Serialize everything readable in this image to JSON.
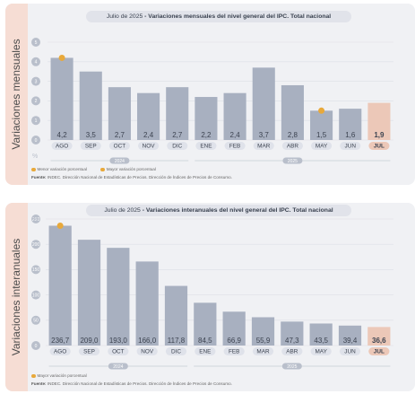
{
  "charts": [
    {
      "side_label": "Variaciones mensuales",
      "title_date": "Julio de 2025",
      "title_text": " - Variaciones mensuales del nivel general del IPC. Total nacional",
      "y_unit": "%",
      "legend_min": "Menor variación porcentual",
      "legend_max": "Mayor variación porcentual",
      "source_label": "Fuente:",
      "source_text": " INDEC. Dirección Nacional de Estadísticas de Precios. Dirección de Índices de Precios de Consumo."
    },
    {
      "side_label": "Variaciones interanuales",
      "title_date": "Julio de 2025",
      "title_text": " - Variaciones interanuales del nivel general del IPC. Total nacional",
      "y_unit": "%",
      "legend_max": "Mayor variación porcentual",
      "source_label": "Fuente:",
      "source_text": " INDEC. Dirección Nacional de Estadísticas de Precios. Dirección de Índices de Precios de Consumo."
    }
  ],
  "colors": {
    "bar": "#a8b0c0",
    "highlight_bar": "#ecc8b8",
    "marker": "#e8a93b",
    "pill": "#dfe2ea",
    "text": "#3c4350"
  },
  "chart_data": [
    {
      "type": "bar",
      "categories": [
        "AGO",
        "SEP",
        "OCT",
        "NOV",
        "DIC",
        "ENE",
        "FEB",
        "MAR",
        "ABR",
        "MAY",
        "JUN",
        "JUL"
      ],
      "values": [
        4.2,
        3.5,
        2.7,
        2.4,
        2.7,
        2.2,
        2.4,
        3.7,
        2.8,
        1.5,
        1.6,
        1.9
      ],
      "value_labels": [
        "4,2",
        "3,5",
        "2,7",
        "2,4",
        "2,7",
        "2,2",
        "2,4",
        "3,7",
        "2,8",
        "1,5",
        "1,6",
        "1,9"
      ],
      "ylim": [
        0,
        5
      ],
      "yticks": [
        0,
        1,
        2,
        3,
        4,
        5
      ],
      "ylabel": "%",
      "year_groups": [
        {
          "label": "2024",
          "from": 0,
          "to": 4
        },
        {
          "label": "2025",
          "from": 5,
          "to": 11
        }
      ],
      "highlight_index": 11,
      "max_index": 0,
      "min_index": 9
    },
    {
      "type": "bar",
      "categories": [
        "AGO",
        "SEP",
        "OCT",
        "NOV",
        "DIC",
        "ENE",
        "FEB",
        "MAR",
        "ABR",
        "MAY",
        "JUN",
        "JUL"
      ],
      "values": [
        236.7,
        209.0,
        193.0,
        166.0,
        117.8,
        84.5,
        66.9,
        55.9,
        47.3,
        43.5,
        39.4,
        36.6
      ],
      "value_labels": [
        "236,7",
        "209,0",
        "193,0",
        "166,0",
        "117,8",
        "84,5",
        "66,9",
        "55,9",
        "47,3",
        "43,5",
        "39,4",
        "36,6"
      ],
      "ylim": [
        0,
        250
      ],
      "yticks": [
        0,
        50,
        100,
        150,
        200,
        250
      ],
      "ylabel": "%",
      "year_groups": [
        {
          "label": "2024",
          "from": 0,
          "to": 4
        },
        {
          "label": "2025",
          "from": 5,
          "to": 11
        }
      ],
      "highlight_index": 11,
      "max_index": 0
    }
  ]
}
